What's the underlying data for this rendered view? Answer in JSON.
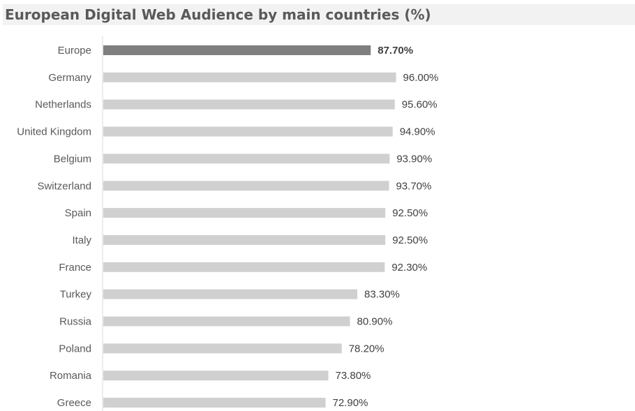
{
  "chart_data": {
    "type": "bar",
    "orientation": "horizontal",
    "title": "European Digital Web Audience by main countries (%)",
    "xlabel": "",
    "ylabel": "",
    "xlim": [
      0,
      100
    ],
    "grid": false,
    "legend": "none",
    "categories": [
      "Europe",
      "Germany",
      "Netherlands",
      "United Kingdom",
      "Belgium",
      "Switzerland",
      "Spain",
      "Italy",
      "France",
      "Turkey",
      "Russia",
      "Poland",
      "Romania",
      "Greece"
    ],
    "values": [
      87.7,
      96.0,
      95.6,
      94.9,
      93.9,
      93.7,
      92.5,
      92.5,
      92.3,
      83.3,
      80.9,
      78.2,
      73.8,
      72.9
    ],
    "value_labels": [
      "87.70%",
      "96.00%",
      "95.60%",
      "94.90%",
      "93.90%",
      "93.70%",
      "92.50%",
      "92.50%",
      "92.30%",
      "83.30%",
      "80.90%",
      "78.20%",
      "73.80%",
      "72.90%"
    ],
    "highlight_category": "Europe",
    "colors": {
      "highlight_bar": "#7f7f7f",
      "bar": "#d0d0d0",
      "axis": "#d9d9d9",
      "title_band": "#f2f2f2",
      "text": "#595959"
    }
  }
}
